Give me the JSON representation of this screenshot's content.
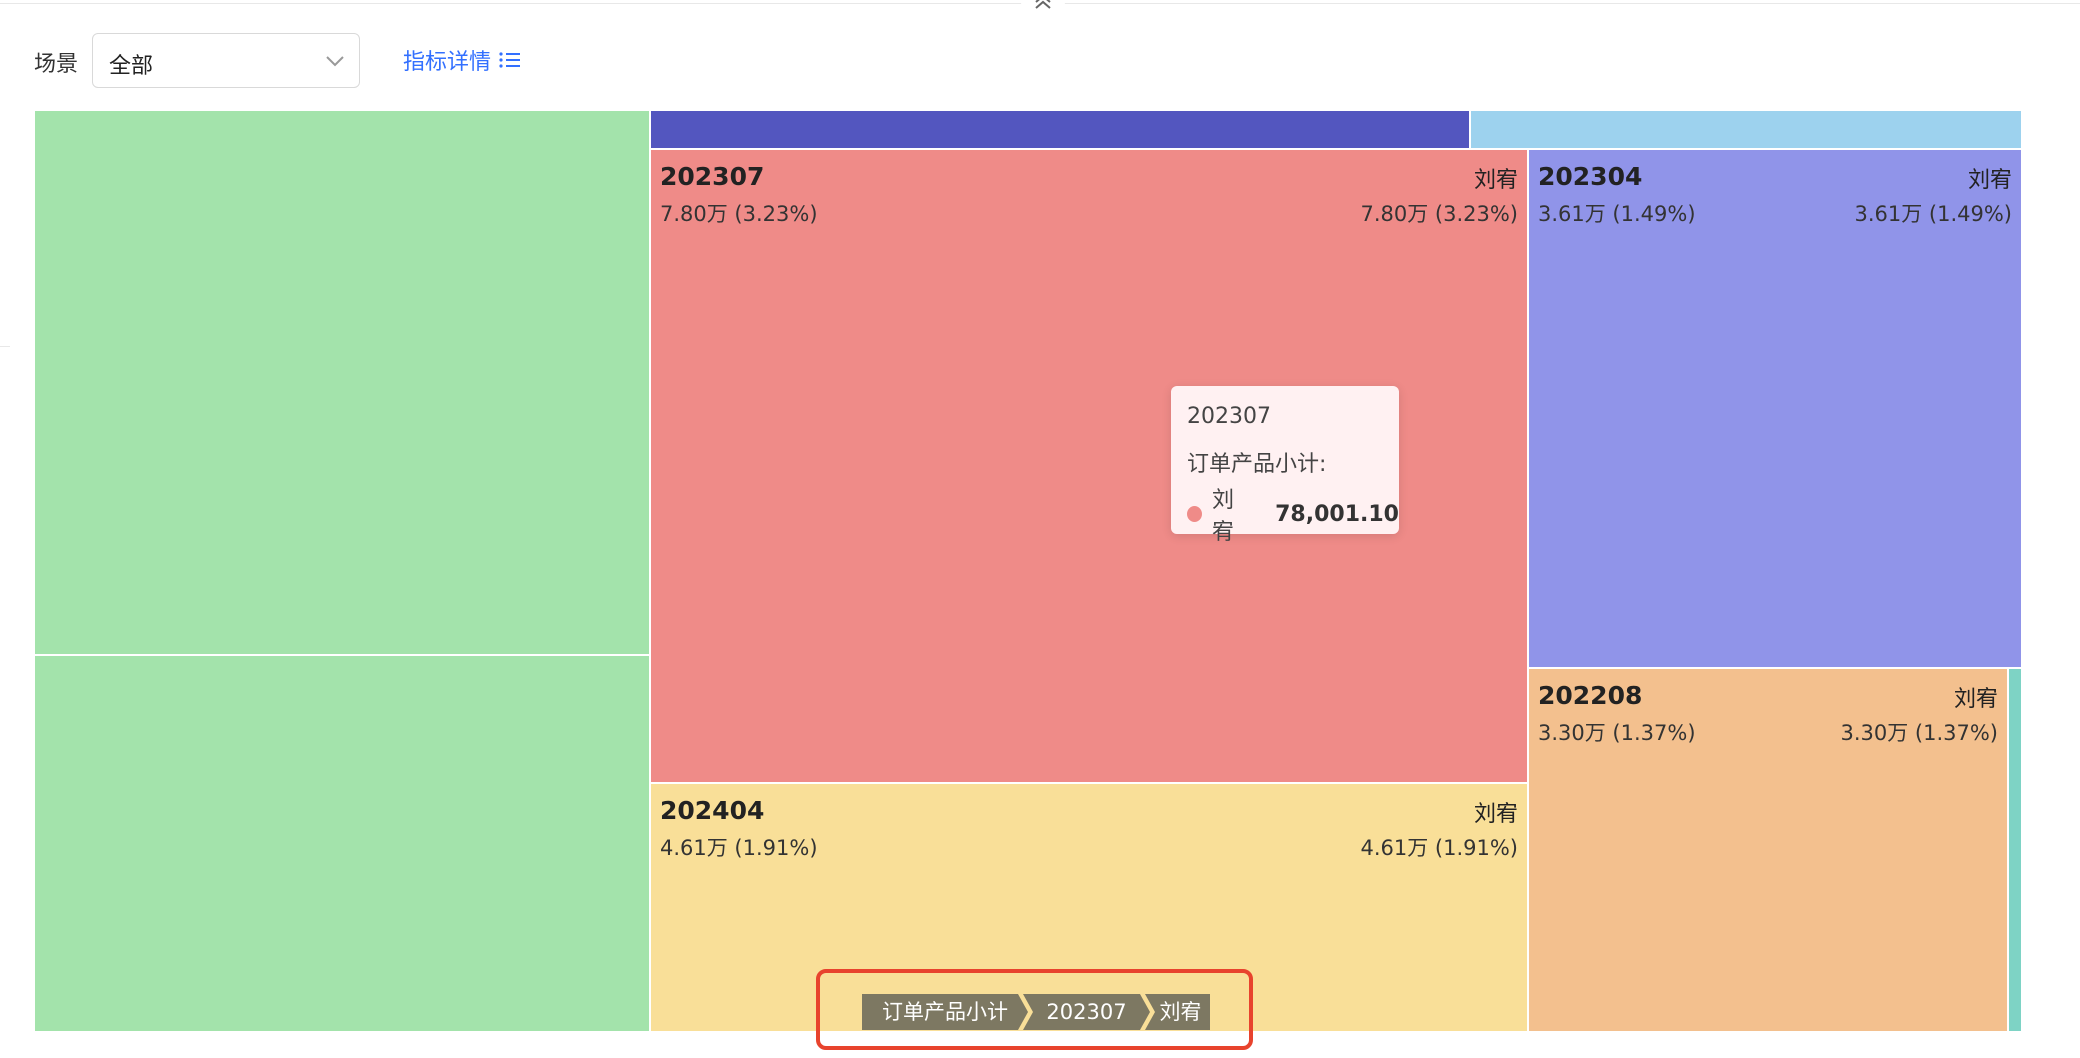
{
  "filter": {
    "label": "场景",
    "selected": "全部",
    "detail_link": "指标详情"
  },
  "colors": {
    "accent": "#3370ff",
    "green": "#a3e3ab",
    "indigo": "#5356bf",
    "sky": "#9dd2ee",
    "red": "#ef8b88",
    "violet": "#9094e9",
    "yellow": "#f9df98",
    "orange": "#f3c08e",
    "teal": "#7ed3c5",
    "highlight": "#e8432d",
    "breadcrumb": "#7d7862"
  },
  "tiles": {
    "t202307": {
      "name": "202307",
      "person": "刘宥",
      "value": "7.80万 (3.23%)",
      "value_right": "7.80万 (3.23%)"
    },
    "t202304": {
      "name": "202304",
      "person": "刘宥",
      "value": "3.61万 (1.49%)",
      "value_right": "3.61万 (1.49%)"
    },
    "t202208": {
      "name": "202208",
      "person": "刘宥",
      "value": "3.30万 (1.37%)",
      "value_right": "3.30万 (1.37%)"
    },
    "t202404": {
      "name": "202404",
      "person": "刘宥",
      "value": "4.61万 (1.91%)",
      "value_right": "4.61万 (1.91%)"
    }
  },
  "tooltip": {
    "title": "202307",
    "metric": "订单产品小计:",
    "series": "刘宥",
    "value": "78,001.10"
  },
  "breadcrumb": [
    "订单产品小计",
    "202307",
    "刘宥"
  ]
}
